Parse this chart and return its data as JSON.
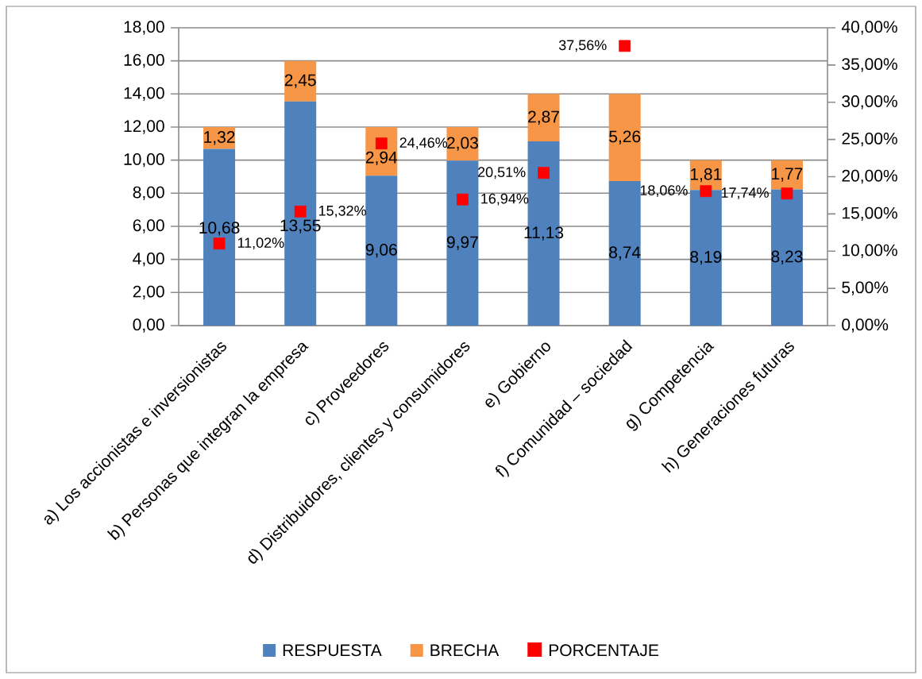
{
  "chart_data": {
    "type": "bar",
    "stacked": true,
    "grid": "y",
    "legend": "bottom",
    "categories": [
      "a) Los accionistas e inversionistas",
      "b) Personas que integran la empresa",
      "c) Proveedores",
      "d) Distribuidores, clientes y consumidores",
      "e) Gobierno",
      "f) Comunidad – sociedad",
      "g) Competencia",
      "h) Generaciones futuras"
    ],
    "series": [
      {
        "name": "RESPUESTA",
        "color": "#4f81bd",
        "values": [
          10.68,
          13.55,
          9.06,
          9.97,
          11.13,
          8.74,
          8.19,
          8.23
        ],
        "value_labels": [
          "10,68",
          "13,55",
          "9,06",
          "9,97",
          "11,13",
          "8,74",
          "8,19",
          "8,23"
        ]
      },
      {
        "name": "BRECHA",
        "color": "#f79646",
        "values": [
          1.32,
          2.45,
          2.94,
          2.03,
          2.87,
          5.26,
          1.81,
          1.77
        ],
        "value_labels": [
          "1,32",
          "2,45",
          "2,94",
          "2,03",
          "2,87",
          "5,26",
          "1,81",
          "1,77"
        ]
      },
      {
        "name": "PORCENTAJE",
        "type": "scatter",
        "axis": "y2",
        "marker": "square",
        "color": "#ff0000",
        "values": [
          11.02,
          15.32,
          24.46,
          16.94,
          20.51,
          37.56,
          18.06,
          17.74
        ],
        "value_labels": [
          "11,02%",
          "15,32%",
          "24,46%",
          "16,94%",
          "20,51%",
          "37,56%",
          "18,06%",
          "17,74%"
        ]
      }
    ],
    "ylim": [
      0,
      18
    ],
    "yticks": [
      {
        "value": 0,
        "label": "0,00"
      },
      {
        "value": 2,
        "label": "2,00"
      },
      {
        "value": 4,
        "label": "4,00"
      },
      {
        "value": 6,
        "label": "6,00"
      },
      {
        "value": 8,
        "label": "8,00"
      },
      {
        "value": 10,
        "label": "10,00"
      },
      {
        "value": 12,
        "label": "12,00"
      },
      {
        "value": 14,
        "label": "14,00"
      },
      {
        "value": 16,
        "label": "16,00"
      },
      {
        "value": 18,
        "label": "18,00"
      }
    ],
    "y2lim": [
      0,
      40
    ],
    "y2ticks": [
      {
        "value": 0,
        "label": "0,00%"
      },
      {
        "value": 5,
        "label": "5,00%"
      },
      {
        "value": 10,
        "label": "10,00%"
      },
      {
        "value": 15,
        "label": "15,00%"
      },
      {
        "value": 20,
        "label": "20,00%"
      },
      {
        "value": 25,
        "label": "25,00%"
      },
      {
        "value": 30,
        "label": "30,00%"
      },
      {
        "value": 35,
        "label": "35,00%"
      },
      {
        "value": 40,
        "label": "40,00%"
      }
    ]
  }
}
